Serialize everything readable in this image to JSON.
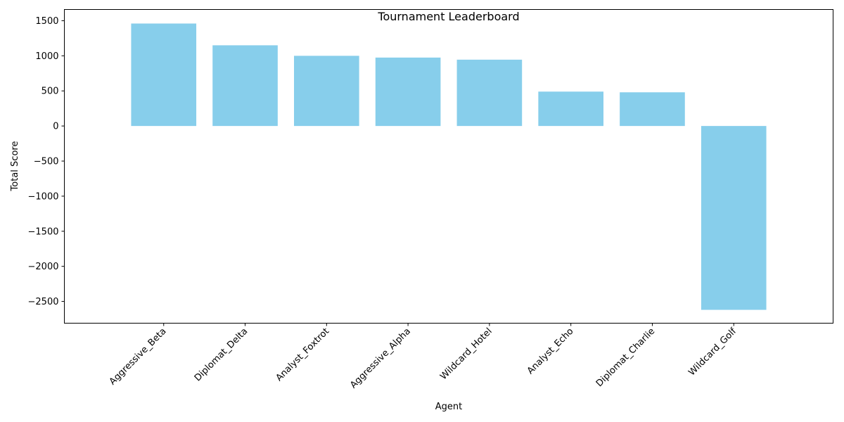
{
  "chart_data": {
    "type": "bar",
    "title": "Tournament Leaderboard",
    "xlabel": "Agent",
    "ylabel": "Total Score",
    "categories": [
      "Aggressive_Beta",
      "Diplomat_Delta",
      "Analyst_Foxtrot",
      "Aggressive_Alpha",
      "Wildcard_Hotel",
      "Analyst_Echo",
      "Diplomat_Charlie",
      "Wildcard_Golf"
    ],
    "values": [
      1460,
      1150,
      1000,
      975,
      945,
      490,
      480,
      -2620
    ],
    "ylim": [
      -2810,
      1660
    ],
    "yticks": [
      -2500,
      -2000,
      -1500,
      -1000,
      -500,
      0,
      500,
      1000,
      1500
    ],
    "ytick_labels": [
      "−2500",
      "−2000",
      "−1500",
      "−1000",
      "−500",
      "0",
      "500",
      "1000",
      "1500"
    ],
    "bar_color": "#87ceeb",
    "grid": false,
    "legend": "none"
  }
}
